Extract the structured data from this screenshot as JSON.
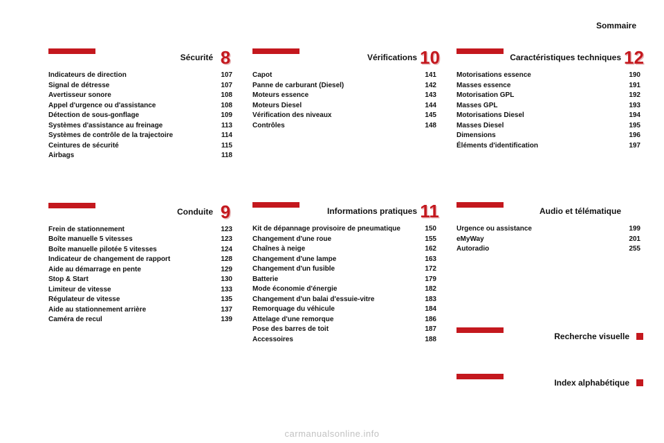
{
  "header": "Sommaire",
  "footer": "carmanualsonline.info",
  "colors": {
    "accent": "#c4181e",
    "text": "#111111",
    "footer": "#c2c2c2",
    "bg": "#ffffff"
  },
  "sections": [
    {
      "title": "Sécurité",
      "number": "8",
      "items": [
        {
          "label": "Indicateurs de direction",
          "page": "107"
        },
        {
          "label": "Signal de détresse",
          "page": "107"
        },
        {
          "label": "Avertisseur sonore",
          "page": "108"
        },
        {
          "label": "Appel d'urgence ou d'assistance",
          "page": "108"
        },
        {
          "label": "Détection de sous-gonflage",
          "page": "109"
        },
        {
          "label": "Systèmes d'assistance au freinage",
          "page": "113"
        },
        {
          "label": "Systèmes de contrôle de la trajectoire",
          "page": "114"
        },
        {
          "label": "Ceintures de sécurité",
          "page": "115"
        },
        {
          "label": "Airbags",
          "page": "118"
        }
      ]
    },
    {
      "title": "Vérifications",
      "number": "10",
      "items": [
        {
          "label": "Capot",
          "page": "141"
        },
        {
          "label": "Panne de carburant (Diesel)",
          "page": "142"
        },
        {
          "label": "Moteurs essence",
          "page": "143"
        },
        {
          "label": "Moteurs Diesel",
          "page": "144"
        },
        {
          "label": "Vérification des niveaux",
          "page": "145"
        },
        {
          "label": "Contrôles",
          "page": "148"
        }
      ]
    },
    {
      "title": "Caractéristiques techniques",
      "number": "12",
      "items": [
        {
          "label": "Motorisations essence",
          "page": "190"
        },
        {
          "label": "Masses essence",
          "page": "191"
        },
        {
          "label": "Motorisation GPL",
          "page": "192"
        },
        {
          "label": "Masses GPL",
          "page": "193"
        },
        {
          "label": "Motorisations Diesel",
          "page": "194"
        },
        {
          "label": "Masses Diesel",
          "page": "195"
        },
        {
          "label": "Dimensions",
          "page": "196"
        },
        {
          "label": "Éléments d'identification",
          "page": "197"
        }
      ]
    },
    {
      "title": "Conduite",
      "number": "9",
      "items": [
        {
          "label": "Frein de stationnement",
          "page": "123"
        },
        {
          "label": "Boîte manuelle 5 vitesses",
          "page": "123"
        },
        {
          "label": "Boîte manuelle pilotée 5 vitesses",
          "page": "124"
        },
        {
          "label": "Indicateur de changement de rapport",
          "page": "128"
        },
        {
          "label": "Aide au démarrage en pente",
          "page": "129"
        },
        {
          "label": "Stop & Start",
          "page": "130"
        },
        {
          "label": "Limiteur de vitesse",
          "page": "133"
        },
        {
          "label": "Régulateur de vitesse",
          "page": "135"
        },
        {
          "label": "Aide au stationnement arrière",
          "page": "137"
        },
        {
          "label": "Caméra de recul",
          "page": "139"
        }
      ]
    },
    {
      "title": "Informations pratiques",
      "number": "11",
      "items": [
        {
          "label": "Kit de dépannage provisoire de pneumatique",
          "page": "150"
        },
        {
          "label": "Changement d'une roue",
          "page": "155"
        },
        {
          "label": "Chaînes à neige",
          "page": "162"
        },
        {
          "label": "Changement d'une lampe",
          "page": "163"
        },
        {
          "label": "Changement d'un fusible",
          "page": "172"
        },
        {
          "label": "Batterie",
          "page": "179"
        },
        {
          "label": "Mode économie d'énergie",
          "page": "182"
        },
        {
          "label": "Changement d'un balai d'essuie-vitre",
          "page": "183"
        },
        {
          "label": "Remorquage du véhicule",
          "page": "184"
        },
        {
          "label": "Attelage d'une remorque",
          "page": "186"
        },
        {
          "label": "Pose des barres de toit",
          "page": "187"
        },
        {
          "label": "Accessoires",
          "page": "188"
        }
      ]
    },
    {
      "title": "Audio et télématique",
      "number": "",
      "items": [
        {
          "label": "Urgence ou assistance",
          "page": "199"
        },
        {
          "label": "eMyWay",
          "page": "201"
        },
        {
          "label": "Autoradio",
          "page": "255"
        }
      ]
    },
    {
      "title": "Recherche visuelle",
      "number": "",
      "marker": true,
      "items": []
    },
    {
      "title": "Index alphabétique",
      "number": "",
      "marker": true,
      "items": []
    }
  ]
}
